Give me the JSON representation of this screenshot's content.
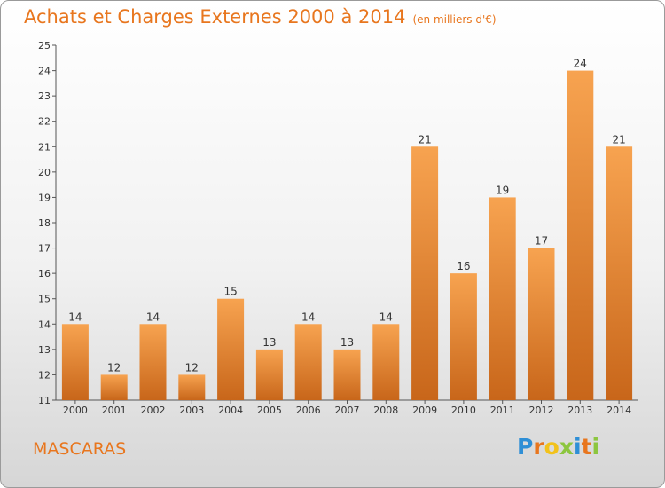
{
  "header": {
    "title": "Achats et Charges Externes 2000 à 2014",
    "subtitle": "(en milliers d'€)"
  },
  "commune": "MASCARAS",
  "logo": {
    "letters": [
      "P",
      "r",
      "o",
      "x",
      "i",
      "t",
      "i"
    ],
    "colors": [
      "#2f8fd6",
      "#e8761e",
      "#f2c21b",
      "#8cc63f",
      "#2f8fd6",
      "#e8761e",
      "#8cc63f"
    ]
  },
  "colors": {
    "accent": "#e8761e",
    "bar_top": "#f7a350",
    "bar_bottom": "#c8661a"
  },
  "chart_data": {
    "type": "bar",
    "categories": [
      "2000",
      "2001",
      "2002",
      "2003",
      "2004",
      "2005",
      "2006",
      "2007",
      "2008",
      "2009",
      "2010",
      "2011",
      "2012",
      "2013",
      "2014"
    ],
    "values": [
      14,
      12,
      14,
      12,
      15,
      13,
      14,
      13,
      14,
      21,
      16,
      19,
      17,
      24,
      21
    ],
    "ylim": [
      11,
      25
    ],
    "yticks": [
      11,
      12,
      13,
      14,
      15,
      16,
      17,
      18,
      19,
      20,
      21,
      22,
      23,
      24,
      25
    ],
    "grid": false,
    "xlabel": "",
    "ylabel": ""
  }
}
